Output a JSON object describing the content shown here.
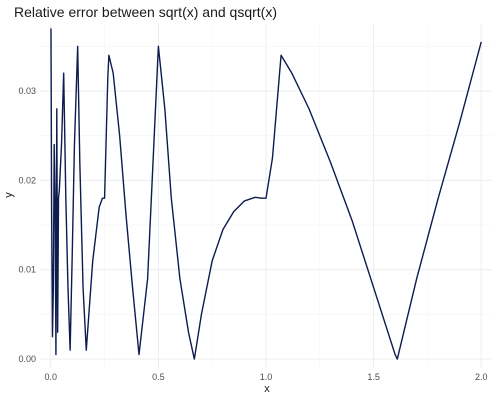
{
  "chart_data": {
    "type": "line",
    "title": "Relative error between sqrt(x) and qsqrt(x)",
    "xlabel": "x",
    "ylabel": "y",
    "xlim": [
      -0.05,
      2.05
    ],
    "ylim": [
      -0.001,
      0.0375
    ],
    "xticks": [
      0.0,
      0.5,
      1.0,
      1.5,
      2.0
    ],
    "xtick_labels": [
      "0.0",
      "0.5",
      "1.0",
      "1.5",
      "2.0"
    ],
    "yticks": [
      0.0,
      0.01,
      0.02,
      0.03
    ],
    "ytick_labels": [
      "0.00",
      "0.01",
      "0.02",
      "0.03"
    ],
    "grid": true,
    "legend": "none",
    "series": [
      {
        "color": "#0d1b4f",
        "x": [
          0.001,
          0.004,
          0.008,
          0.012,
          0.016,
          0.02,
          0.024,
          0.028,
          0.032,
          0.036,
          0.04,
          0.05,
          0.06,
          0.07,
          0.08,
          0.09,
          0.1,
          0.11,
          0.125,
          0.135,
          0.15,
          0.165,
          0.18,
          0.195,
          0.21,
          0.225,
          0.24,
          0.25,
          0.265,
          0.27,
          0.29,
          0.32,
          0.35,
          0.38,
          0.41,
          0.45,
          0.5,
          0.53,
          0.56,
          0.6,
          0.64,
          0.667,
          0.7,
          0.75,
          0.8,
          0.85,
          0.9,
          0.95,
          0.98,
          1.0,
          1.03,
          1.07,
          1.12,
          1.2,
          1.3,
          1.4,
          1.5,
          1.56,
          1.6,
          1.61,
          1.65,
          1.7,
          1.8,
          1.9,
          2.0
        ],
        "y": [
          0.037,
          0.017,
          0.0025,
          0.008,
          0.024,
          0.018,
          0.0005,
          0.028,
          0.003,
          0.018,
          0.019,
          0.024,
          0.032,
          0.018,
          0.008,
          0.001,
          0.012,
          0.024,
          0.035,
          0.022,
          0.008,
          0.001,
          0.006,
          0.011,
          0.014,
          0.017,
          0.018,
          0.018,
          0.0315,
          0.034,
          0.032,
          0.025,
          0.016,
          0.008,
          0.0005,
          0.009,
          0.035,
          0.028,
          0.018,
          0.009,
          0.003,
          0.0,
          0.005,
          0.011,
          0.0145,
          0.0165,
          0.0177,
          0.0181,
          0.018,
          0.018,
          0.0225,
          0.034,
          0.032,
          0.028,
          0.022,
          0.0155,
          0.008,
          0.0035,
          0.0005,
          0.0,
          0.004,
          0.009,
          0.018,
          0.0265,
          0.0355
        ]
      }
    ]
  }
}
